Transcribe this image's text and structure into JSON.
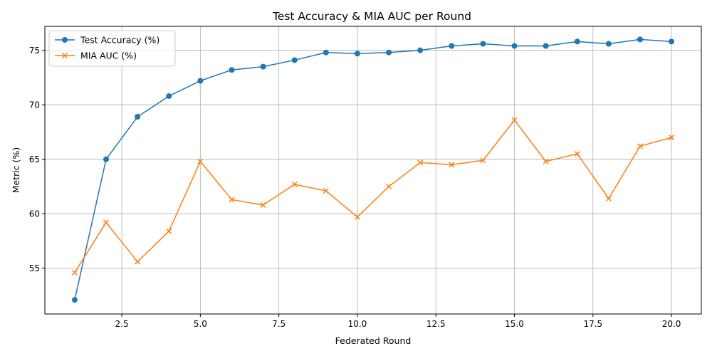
{
  "chart_data": {
    "type": "line",
    "title": "Test Accuracy & MIA AUC per Round",
    "xlabel": "Federated Round",
    "ylabel": "Metric (%)",
    "xlim": [
      0.05,
      20.95
    ],
    "ylim": [
      50.8,
      77.2
    ],
    "x_ticks": [
      2.5,
      5.0,
      7.5,
      10.0,
      12.5,
      15.0,
      17.5,
      20.0
    ],
    "x_tick_labels": [
      "2.5",
      "5.0",
      "7.5",
      "10.0",
      "12.5",
      "15.0",
      "17.5",
      "20.0"
    ],
    "y_ticks": [
      55,
      60,
      65,
      70,
      75
    ],
    "y_tick_labels": [
      "55",
      "60",
      "65",
      "70",
      "75"
    ],
    "grid": true,
    "legend_position": "top-left",
    "x": [
      1,
      2,
      3,
      4,
      5,
      6,
      7,
      8,
      9,
      10,
      11,
      12,
      13,
      14,
      15,
      16,
      17,
      18,
      19,
      20
    ],
    "series": [
      {
        "name": "Test Accuracy (%)",
        "color": "#1f77b4",
        "marker": "circle",
        "values": [
          52.1,
          65.0,
          68.9,
          70.8,
          72.2,
          73.2,
          73.5,
          74.1,
          74.8,
          74.7,
          74.8,
          75.0,
          75.4,
          75.6,
          75.4,
          75.4,
          75.8,
          75.6,
          76.0,
          75.8
        ]
      },
      {
        "name": "MIA AUC (%)",
        "color": "#ff7f0e",
        "marker": "x",
        "values": [
          54.6,
          59.2,
          55.6,
          58.4,
          64.8,
          61.3,
          60.8,
          62.7,
          62.1,
          59.7,
          62.5,
          64.7,
          64.5,
          64.9,
          68.6,
          64.8,
          65.5,
          61.4,
          66.2,
          67.0
        ]
      }
    ]
  }
}
